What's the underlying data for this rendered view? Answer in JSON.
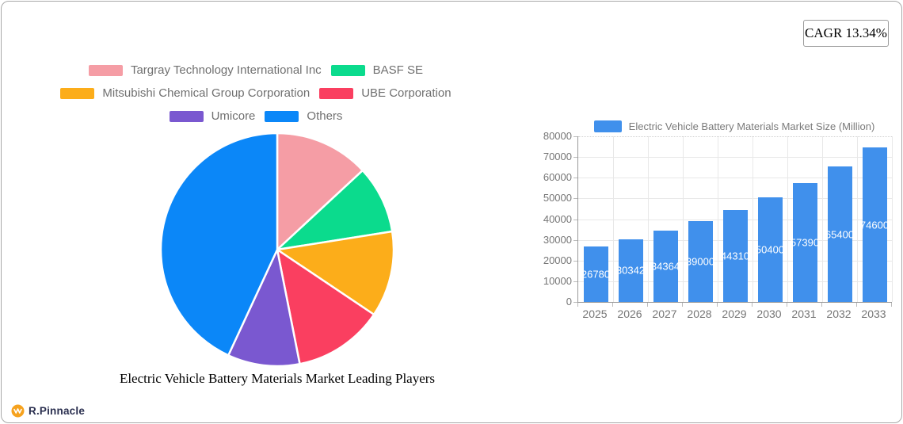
{
  "cagr_badge": {
    "label": "CAGR 13.34%"
  },
  "brand": {
    "name": "R.Pinnacle",
    "logo_color": "#f6a21e"
  },
  "chart_data": [
    {
      "type": "pie",
      "title": "Electric Vehicle Battery Materials Market Leading Players",
      "legend_position": "top",
      "start_angle_deg": 0,
      "direction": "clockwise",
      "slices": [
        {
          "label": "Targray Technology International Inc",
          "value": 13.1,
          "color": "#f59da5"
        },
        {
          "label": "BASF SE",
          "value": 9.4,
          "color": "#0bdb8d"
        },
        {
          "label": "Mitsubishi Chemical Group Corporation",
          "value": 11.9,
          "color": "#fcad1a"
        },
        {
          "label": "UBE Corporation",
          "value": 12.5,
          "color": "#fa3f60"
        },
        {
          "label": "Umicore",
          "value": 10.0,
          "color": "#7a58d0"
        },
        {
          "label": "Others",
          "value": 43.1,
          "color": "#0b87f8"
        }
      ]
    },
    {
      "type": "bar",
      "legend": "Electric Vehicle Battery Materials Market Size (Million)",
      "categories": [
        "2025",
        "2026",
        "2027",
        "2028",
        "2029",
        "2030",
        "2031",
        "2032",
        "2033"
      ],
      "values": [
        26780,
        30342,
        34364,
        39000,
        44310,
        50400,
        57390,
        65400,
        74600
      ],
      "bar_color": "#4090ec",
      "ylim": [
        0,
        80000
      ],
      "ytick_step": 10000,
      "grid": true,
      "value_label_color": "#ffffff"
    }
  ]
}
